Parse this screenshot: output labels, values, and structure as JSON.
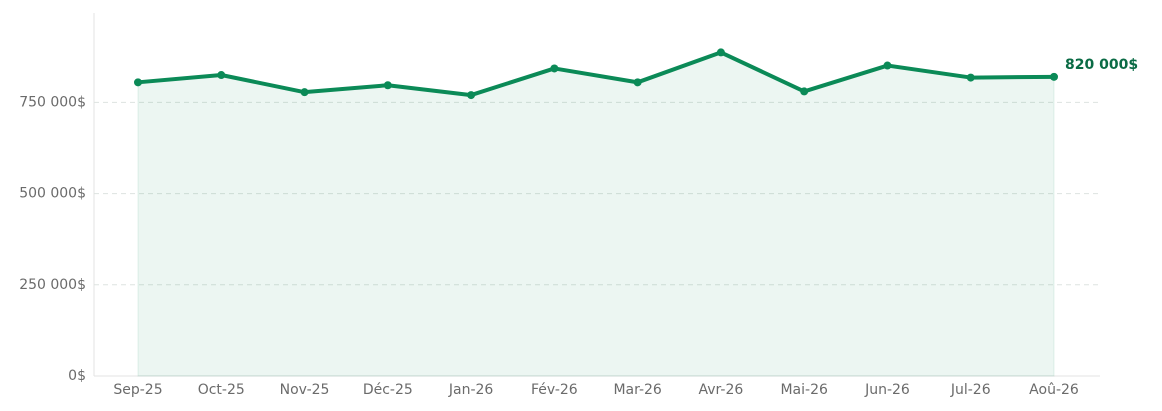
{
  "chart_data": {
    "type": "line",
    "categories": [
      "Sep-25",
      "Oct-25",
      "Nov-25",
      "Déc-25",
      "Jan-26",
      "Fév-26",
      "Mar-26",
      "Avr-26",
      "Mai-26",
      "Jun-26",
      "Jul-26",
      "Aoû-26"
    ],
    "series": [
      {
        "color": "#0b8a57",
        "values": [
          805000,
          825000,
          778000,
          797000,
          770000,
          843000,
          805000,
          887000,
          780000,
          851000,
          818000,
          820000
        ],
        "value_labels": [
          null,
          null,
          null,
          null,
          null,
          null,
          null,
          null,
          null,
          null,
          null,
          "820 000$"
        ]
      }
    ],
    "ylim": [
      0,
      995000
    ],
    "yticks": [
      {
        "value": 0,
        "label": "0$"
      },
      {
        "value": 250000,
        "label": "250 000$"
      },
      {
        "value": 500000,
        "label": "500 000$"
      },
      {
        "value": 750000,
        "label": "750 000$"
      }
    ],
    "grid": true,
    "area": true
  }
}
